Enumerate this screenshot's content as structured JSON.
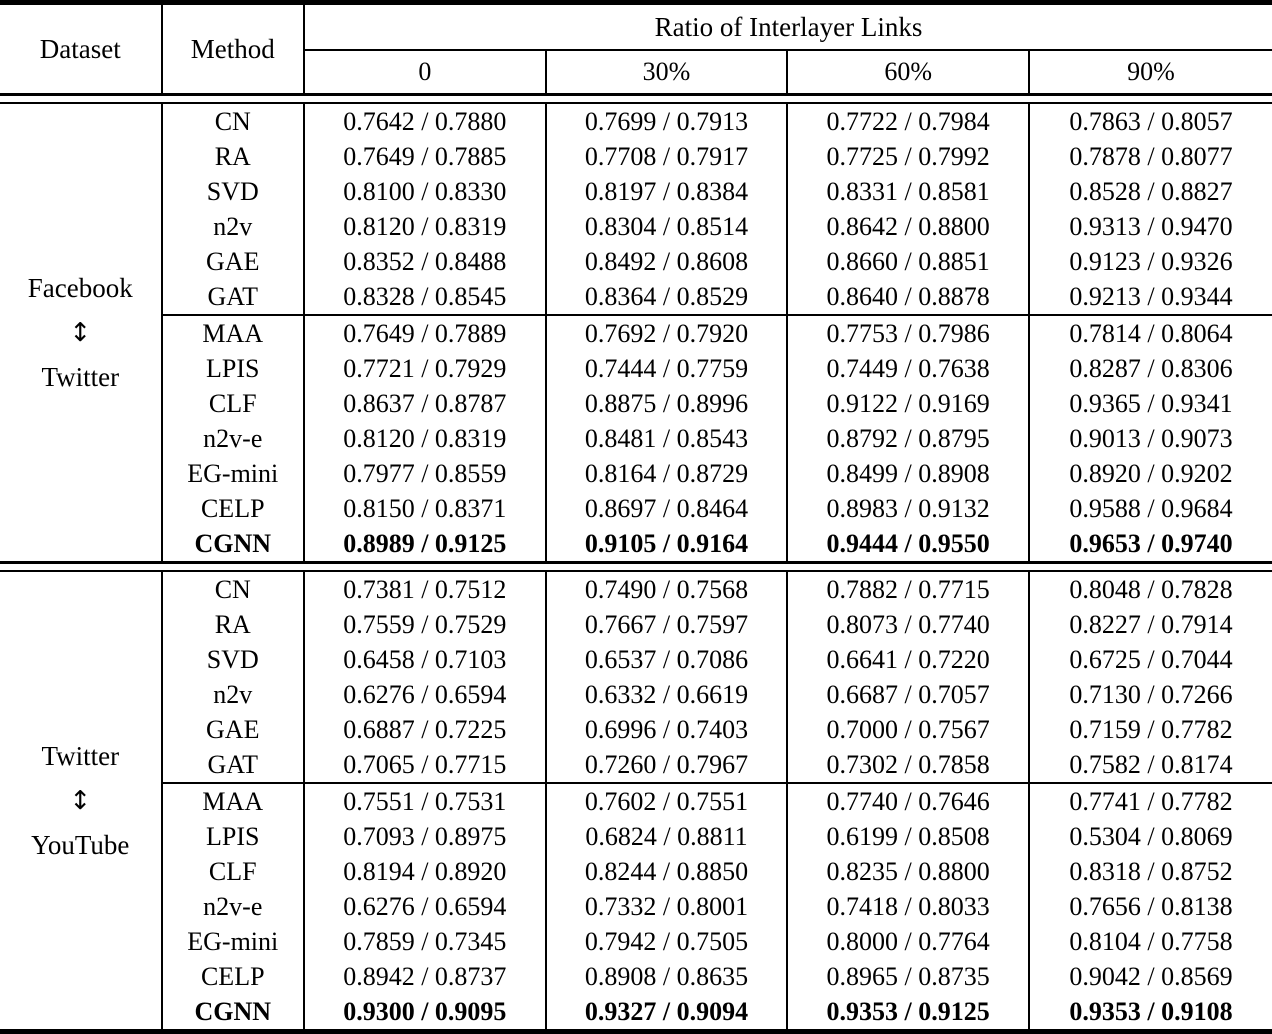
{
  "colors": {
    "text": "#000000",
    "background": "#ffffff",
    "rules": "#000000"
  },
  "header": {
    "dataset": "Dataset",
    "method": "Method",
    "group": "Ratio of Interlayer Links",
    "ratios": [
      "0",
      "30%",
      "60%",
      "90%"
    ]
  },
  "blocks": [
    {
      "dataset_lines": [
        "Facebook",
        "↕",
        "Twitter"
      ],
      "groups": [
        {
          "rows": [
            {
              "method": "CN",
              "cells": [
                "0.7642 / 0.7880",
                "0.7699 / 0.7913",
                "0.7722 / 0.7984",
                "0.7863 / 0.8057"
              ]
            },
            {
              "method": "RA",
              "cells": [
                "0.7649 / 0.7885",
                "0.7708 / 0.7917",
                "0.7725 / 0.7992",
                "0.7878 / 0.8077"
              ]
            },
            {
              "method": "SVD",
              "cells": [
                "0.8100 / 0.8330",
                "0.8197 / 0.8384",
                "0.8331 / 0.8581",
                "0.8528 / 0.8827"
              ]
            },
            {
              "method": "n2v",
              "cells": [
                "0.8120 / 0.8319",
                "0.8304 / 0.8514",
                "0.8642 / 0.8800",
                "0.9313 / 0.9470"
              ]
            },
            {
              "method": "GAE",
              "cells": [
                "0.8352 / 0.8488",
                "0.8492 / 0.8608",
                "0.8660 / 0.8851",
                "0.9123 / 0.9326"
              ]
            },
            {
              "method": "GAT",
              "cells": [
                "0.8328 / 0.8545",
                "0.8364 / 0.8529",
                "0.8640 / 0.8878",
                "0.9213 / 0.9344"
              ]
            }
          ]
        },
        {
          "rows": [
            {
              "method": "MAA",
              "cells": [
                "0.7649 / 0.7889",
                "0.7692 / 0.7920",
                "0.7753 / 0.7986",
                "0.7814 / 0.8064"
              ]
            },
            {
              "method": "LPIS",
              "cells": [
                "0.7721 / 0.7929",
                "0.7444 / 0.7759",
                "0.7449 / 0.7638",
                "0.8287 / 0.8306"
              ]
            },
            {
              "method": "CLF",
              "cells": [
                "0.8637 / 0.8787",
                "0.8875 / 0.8996",
                "0.9122 / 0.9169",
                "0.9365 / 0.9341"
              ]
            },
            {
              "method": "n2v-e",
              "cells": [
                "0.8120 / 0.8319",
                "0.8481 / 0.8543",
                "0.8792 / 0.8795",
                "0.9013 / 0.9073"
              ]
            },
            {
              "method": "EG-mini",
              "cells": [
                "0.7977 / 0.8559",
                "0.8164 / 0.8729",
                "0.8499 / 0.8908",
                "0.8920 / 0.9202"
              ]
            },
            {
              "method": "CELP",
              "cells": [
                "0.8150 / 0.8371",
                "0.8697 / 0.8464",
                "0.8983 / 0.9132",
                "0.9588 / 0.9684"
              ]
            },
            {
              "method": "CGNN",
              "bold": true,
              "cells": [
                "0.8989 / 0.9125",
                "0.9105 / 0.9164",
                "0.9444 / 0.9550",
                "0.9653 / 0.9740"
              ]
            }
          ]
        }
      ]
    },
    {
      "dataset_lines": [
        "Twitter",
        "↕",
        "YouTube"
      ],
      "groups": [
        {
          "rows": [
            {
              "method": "CN",
              "cells": [
                "0.7381 / 0.7512",
                "0.7490 / 0.7568",
                "0.7882 / 0.7715",
                "0.8048 / 0.7828"
              ]
            },
            {
              "method": "RA",
              "cells": [
                "0.7559 / 0.7529",
                "0.7667 / 0.7597",
                "0.8073 / 0.7740",
                "0.8227 / 0.7914"
              ]
            },
            {
              "method": "SVD",
              "cells": [
                "0.6458 / 0.7103",
                "0.6537 / 0.7086",
                "0.6641 / 0.7220",
                "0.6725 / 0.7044"
              ]
            },
            {
              "method": "n2v",
              "cells": [
                "0.6276 / 0.6594",
                "0.6332 / 0.6619",
                "0.6687 / 0.7057",
                "0.7130 / 0.7266"
              ]
            },
            {
              "method": "GAE",
              "cells": [
                "0.6887 / 0.7225",
                "0.6996 / 0.7403",
                "0.7000 / 0.7567",
                "0.7159 / 0.7782"
              ]
            },
            {
              "method": "GAT",
              "cells": [
                "0.7065 / 0.7715",
                "0.7260 / 0.7967",
                "0.7302 / 0.7858",
                "0.7582 / 0.8174"
              ]
            }
          ]
        },
        {
          "rows": [
            {
              "method": "MAA",
              "cells": [
                "0.7551 / 0.7531",
                "0.7602 / 0.7551",
                "0.7740 / 0.7646",
                "0.7741 / 0.7782"
              ]
            },
            {
              "method": "LPIS",
              "cells": [
                "0.7093 / 0.8975",
                "0.6824 / 0.8811",
                "0.6199 / 0.8508",
                "0.5304 / 0.8069"
              ]
            },
            {
              "method": "CLF",
              "cells": [
                "0.8194 / 0.8920",
                "0.8244 / 0.8850",
                "0.8235 / 0.8800",
                "0.8318 / 0.8752"
              ]
            },
            {
              "method": "n2v-e",
              "cells": [
                "0.6276 / 0.6594",
                "0.7332 / 0.8001",
                "0.7418 / 0.8033",
                "0.7656 / 0.8138"
              ]
            },
            {
              "method": "EG-mini",
              "cells": [
                "0.7859 / 0.7345",
                "0.7942 / 0.7505",
                "0.8000 / 0.7764",
                "0.8104 / 0.7758"
              ]
            },
            {
              "method": "CELP",
              "cells": [
                "0.8942 / 0.8737",
                "0.8908 / 0.8635",
                "0.8965 / 0.8735",
                "0.9042 / 0.8569"
              ]
            },
            {
              "method": "CGNN",
              "bold": true,
              "cells": [
                "0.9300 / 0.9095",
                "0.9327 / 0.9094",
                "0.9353 / 0.9125",
                "0.9353 / 0.9108"
              ]
            }
          ]
        }
      ]
    }
  ]
}
